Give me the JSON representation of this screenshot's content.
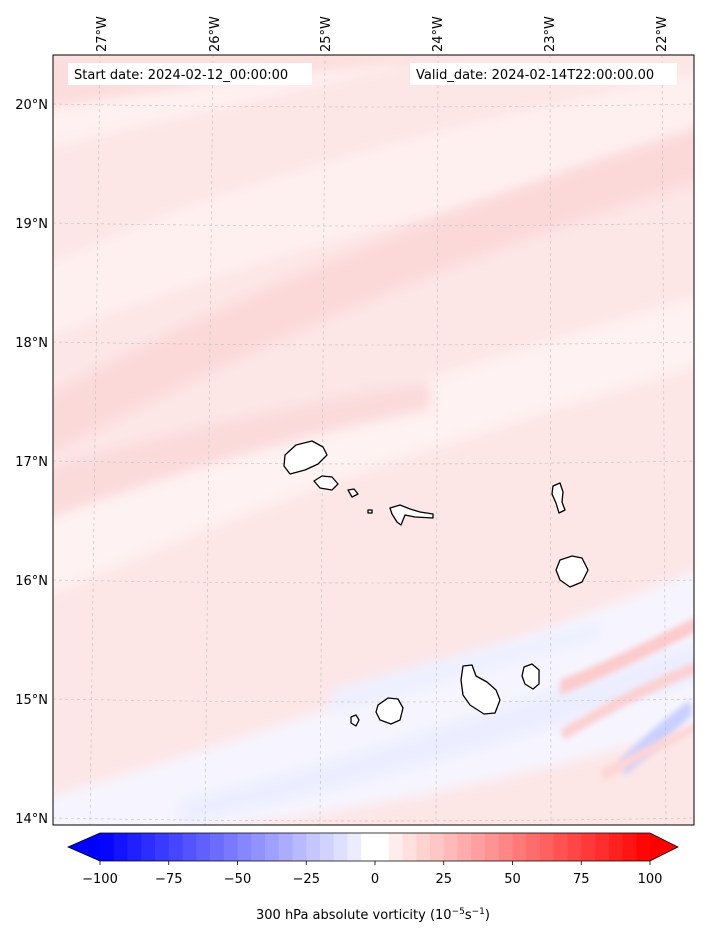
{
  "header": {
    "start_date": "Start date: 2024-02-12_00:00:00",
    "valid_date": "Valid_date: 2024-02-14T22:00:00.00"
  },
  "axes": {
    "longitudes": [
      "27°W",
      "26°W",
      "25°W",
      "24°W",
      "23°W",
      "22°W"
    ],
    "latitudes": [
      "20°N",
      "19°N",
      "18°N",
      "17°N",
      "16°N",
      "15°N",
      "14°N"
    ]
  },
  "colorbar": {
    "label_main": "300 hPa absolute vorticity (10",
    "label_exp1": "−5",
    "label_mid": "s",
    "label_exp2": "−1",
    "label_end": ")",
    "ticks": [
      "−100",
      "−75",
      "−50",
      "−25",
      "0",
      "25",
      "50",
      "75",
      "100"
    ],
    "min": -100,
    "max": 100,
    "step": 5,
    "negative_color": "#0000ff",
    "positive_color": "#ff0000"
  },
  "islands": [
    "Santo Antão",
    "São Vicente",
    "Santa Luzia",
    "São Nicolau",
    "Sal",
    "Boa Vista",
    "Maio",
    "Santiago",
    "Fogo",
    "Brava"
  ]
}
